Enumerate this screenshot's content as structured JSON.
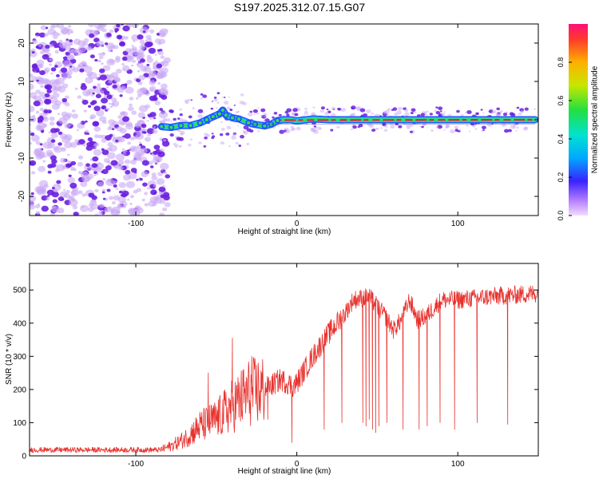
{
  "title": "S197.2025.312.07.15.G07",
  "colors": {
    "snr_line": "#e8322e",
    "ridge_core": "#e8232e",
    "ridge_mid": "#33dd55",
    "ridge_outer": "#2255ff",
    "noise_dark": "#6a1fe0",
    "noise_light": "#c9a8f5"
  },
  "chart_data": [
    {
      "type": "heatmap",
      "title": "S197.2025.312.07.15.G07",
      "xlabel": "Height of straight line (km)",
      "ylabel": "Frequency (Hz)",
      "xlim": [
        -166,
        150
      ],
      "ylim": [
        -25,
        25
      ],
      "x_ticks": [
        -100,
        0,
        100
      ],
      "y_ticks": [
        -20,
        -10,
        0,
        10,
        20
      ],
      "colorbar": {
        "label": "Normalized spectral amplitude",
        "range": [
          0,
          1
        ],
        "ticks": [
          0.0,
          0.2,
          0.4,
          0.6,
          0.8
        ]
      },
      "ridge": {
        "x": [
          -84,
          -78,
          -72,
          -66,
          -60,
          -56,
          -52,
          -48,
          -46,
          -44,
          -40,
          -36,
          -30,
          -26,
          -20,
          -16,
          -12,
          -8,
          -4,
          0,
          10,
          20,
          40,
          60,
          80,
          100,
          120,
          140,
          148
        ],
        "y": [
          -1.8,
          -2.0,
          -1.5,
          -1.5,
          -0.8,
          0.0,
          0.8,
          1.5,
          2.5,
          1.2,
          0.5,
          0.2,
          -0.8,
          -1.2,
          -1.6,
          -1.2,
          -0.2,
          0.0,
          0.0,
          -0.3,
          0.2,
          0.0,
          0.0,
          0.0,
          0.0,
          0.0,
          0.0,
          0.0,
          0.0
        ]
      },
      "noise_region_x": [
        -166,
        -80
      ]
    },
    {
      "type": "line",
      "xlabel": "Height of straight line (km)",
      "ylabel": "SNR (10 * v/v)",
      "xlim": [
        -166,
        150
      ],
      "ylim": [
        0,
        580
      ],
      "x_ticks": [
        -100,
        0,
        100
      ],
      "y_ticks": [
        0,
        100,
        200,
        300,
        400,
        500
      ],
      "series": [
        {
          "name": "SNR",
          "trend": {
            "x": [
              -166,
              -120,
              -85,
              -78,
              -70,
              -60,
              -50,
              -40,
              -30,
              -20,
              -10,
              -2,
              0,
              10,
              20,
              30,
              35,
              45,
              50,
              55,
              60,
              65,
              70,
              75,
              80,
              90,
              100,
              120,
              150
            ],
            "y": [
              18,
              18,
              18,
              30,
              50,
              90,
              110,
              150,
              190,
              200,
              230,
              210,
              220,
              300,
              370,
              430,
              470,
              480,
              450,
              420,
              380,
              410,
              470,
              410,
              420,
              470,
              470,
              480,
              490
            ]
          },
          "dropouts": [
            {
              "x": 17,
              "y": 80
            },
            {
              "x": 28,
              "y": 100
            },
            {
              "x": 41,
              "y": 100
            },
            {
              "x": 43,
              "y": 90
            },
            {
              "x": 45,
              "y": 110
            },
            {
              "x": 47,
              "y": 80
            },
            {
              "x": 49,
              "y": 70
            },
            {
              "x": 51,
              "y": 90
            },
            {
              "x": 56,
              "y": 100
            },
            {
              "x": 66,
              "y": 80
            },
            {
              "x": 76,
              "y": 80
            },
            {
              "x": 81,
              "y": 90
            },
            {
              "x": 89,
              "y": 100
            },
            {
              "x": 98,
              "y": 80
            },
            {
              "x": 112,
              "y": 100
            },
            {
              "x": 131,
              "y": 95
            }
          ],
          "spikes": [
            {
              "x": -40,
              "y": 355
            },
            {
              "x": -55,
              "y": 250
            },
            {
              "x": -28,
              "y": 300
            },
            {
              "x": -3,
              "y": 40
            },
            {
              "x": -18,
              "y": 110
            }
          ]
        }
      ]
    }
  ]
}
